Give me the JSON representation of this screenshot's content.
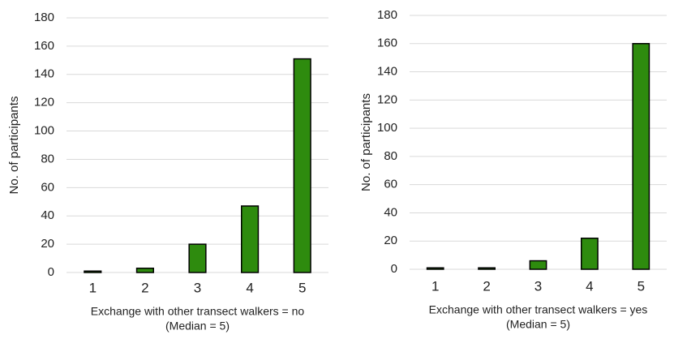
{
  "chart_data": [
    {
      "type": "bar",
      "ylabel": "No. of participants",
      "xlabel": [
        "Exchange with other transect walkers = no",
        "(Median = 5)"
      ],
      "categories": [
        "1",
        "2",
        "3",
        "4",
        "5"
      ],
      "values": [
        1,
        3,
        20,
        47,
        151
      ],
      "color": "#2e8b0e",
      "ylim": [
        0,
        180
      ],
      "yticks": [
        0,
        20,
        40,
        60,
        80,
        100,
        120,
        140,
        160,
        180
      ],
      "grid": true
    },
    {
      "type": "bar",
      "ylabel": "No. of participants",
      "xlabel": [
        "Exchange with other transect walkers = yes",
        "(Median = 5)"
      ],
      "categories": [
        "1",
        "2",
        "3",
        "4",
        "5"
      ],
      "values": [
        1,
        1,
        6,
        22,
        160
      ],
      "color": "#2e8b0e",
      "ylim": [
        0,
        180
      ],
      "yticks": [
        0,
        20,
        40,
        60,
        80,
        100,
        120,
        140,
        160,
        180
      ],
      "grid": true
    }
  ]
}
